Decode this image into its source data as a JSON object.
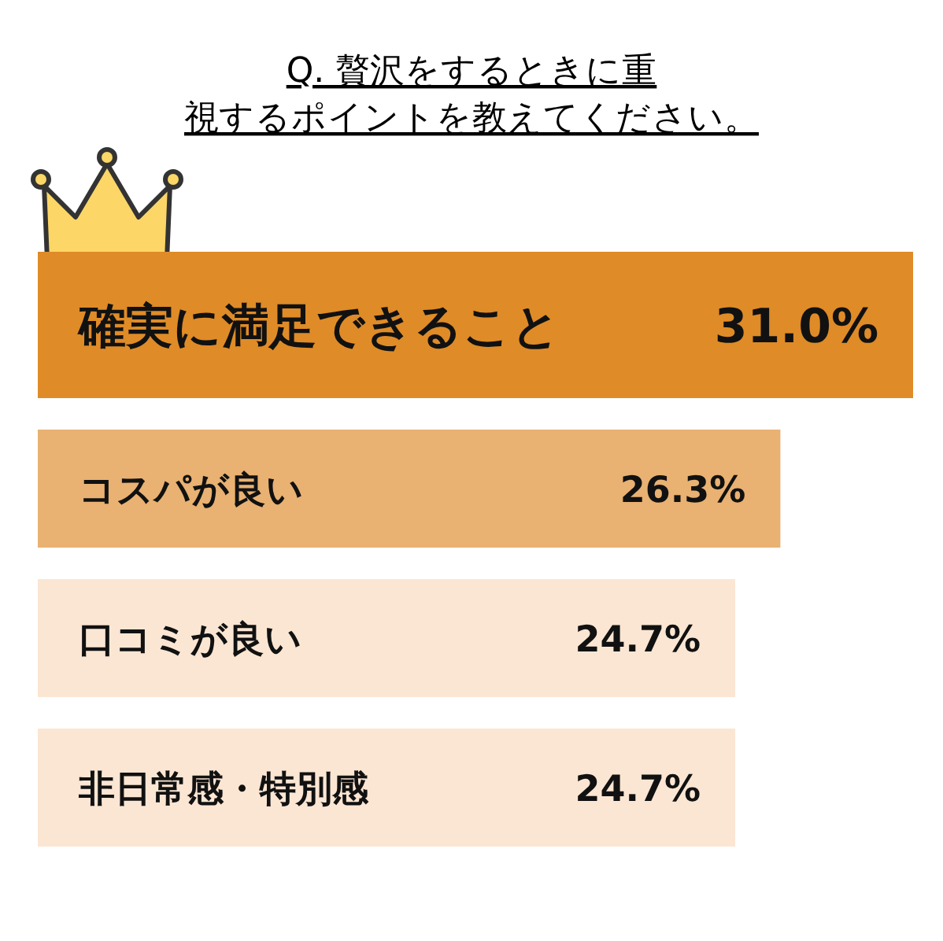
{
  "chart_data": {
    "type": "bar",
    "orientation": "horizontal",
    "title": "Q. 贅沢をするときに重視するポイントを教えてください。",
    "categories": [
      "確実に満足できること",
      "コスパが良い",
      "口コミが良い",
      "非日常感・特別感"
    ],
    "values": [
      31.0,
      26.3,
      24.7,
      24.7
    ],
    "value_labels": [
      "31.0%",
      "26.3%",
      "24.7%",
      "24.7%"
    ],
    "colors": [
      "#df8b27",
      "#e9b172",
      "#fbe6d3",
      "#fbe6d3"
    ]
  }
}
